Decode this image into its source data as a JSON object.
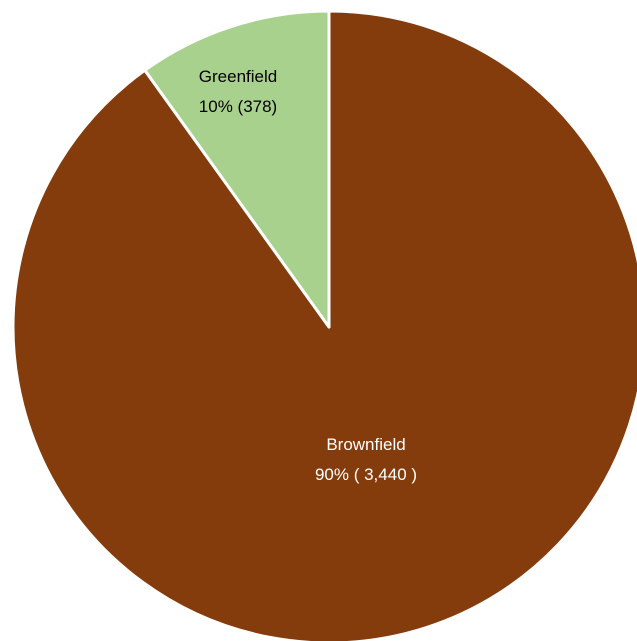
{
  "chart_data": {
    "type": "pie",
    "title": "",
    "slices": [
      {
        "label": "Brownfield",
        "value": 3440,
        "percent": 90,
        "value_text": "90% ( 3,440 )",
        "color": "#843C0C",
        "text_color": "#ffffff"
      },
      {
        "label": "Greenfield",
        "value": 378,
        "percent": 10,
        "value_text": "10% (378)",
        "color": "#A9D18E",
        "text_color": "#000000"
      }
    ],
    "start_angle": "12 o'clock",
    "direction": "counterclockwise from 12 o'clock for Greenfield; Brownfield fills remainder",
    "legend": "none",
    "slice_border_color": "#ffffff"
  }
}
